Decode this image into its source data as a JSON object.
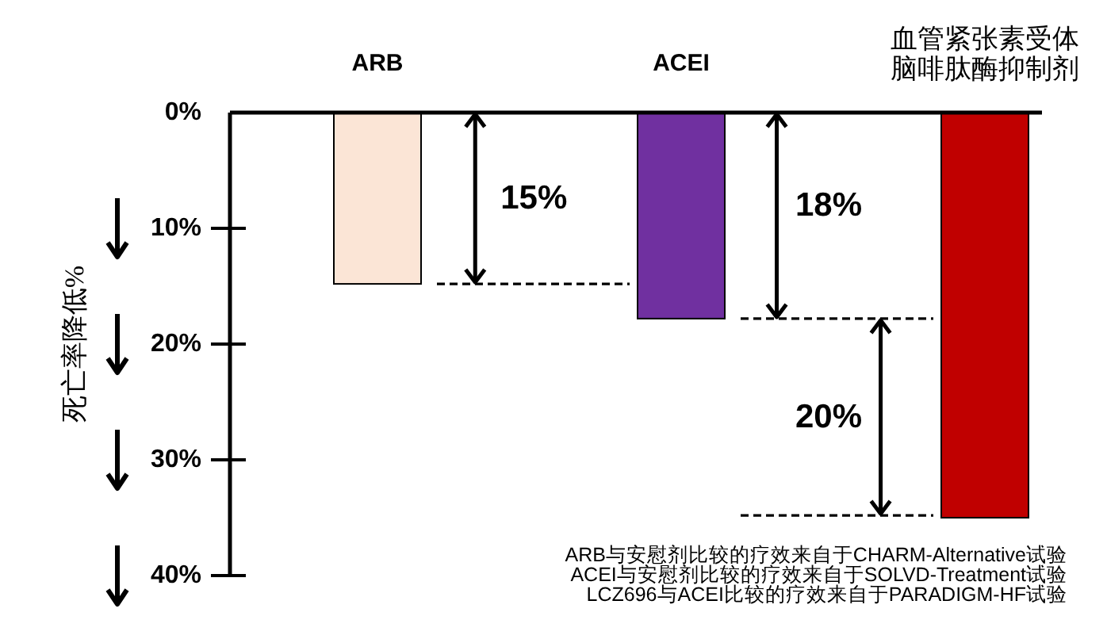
{
  "chart_data": {
    "type": "bar",
    "categories": [
      "ARB",
      "ACEI",
      "血管紧张素受体脑啡肽酶抑制剂"
    ],
    "values": [
      14.8,
      17.8,
      35
    ],
    "colors": [
      "#fbe5d6",
      "#7030a0",
      "#c00000"
    ],
    "ylabel": "死亡率降低%",
    "ylim": [
      40,
      0
    ],
    "yticks": [
      {
        "value": 0,
        "label": "0%"
      },
      {
        "value": 10,
        "label": "10%"
      },
      {
        "value": 20,
        "label": "20%"
      },
      {
        "value": 30,
        "label": "30%"
      },
      {
        "value": 40,
        "label": "40%"
      }
    ],
    "ref_lines": [
      {
        "axis": "y",
        "value": 14.8,
        "color": "#000000",
        "line_style": "dashed"
      },
      {
        "axis": "y",
        "value": 17.8,
        "color": "#000000",
        "line_style": "dashed"
      },
      {
        "axis": "y",
        "value": 34.8,
        "color": "#000000",
        "line_style": "dashed"
      }
    ],
    "annotations": [
      "15%",
      "18%",
      "20%",
      "ARB与安慰剂比较的疗效来自于CHARM-Alternative试验",
      "ACEI与安慰剂比较的疗效来自于SOLVD-Treatment试验",
      "LCZ696与ACEI比较的疗效来自于PARADIGM-HF试验"
    ],
    "grid": false,
    "legend": false
  }
}
